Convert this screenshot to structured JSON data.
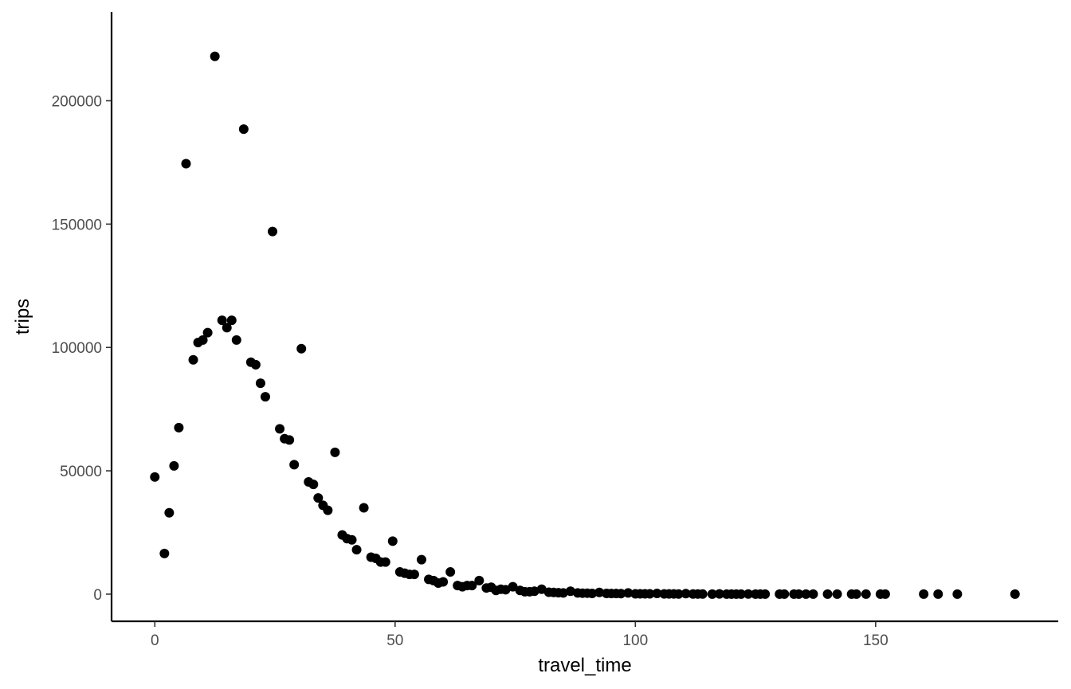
{
  "chart_data": {
    "type": "scatter",
    "xlabel": "travel_time",
    "ylabel": "trips",
    "xlim": [
      -9,
      188
    ],
    "ylim": [
      -11000,
      236000
    ],
    "x_ticks": [
      0,
      50,
      100,
      150
    ],
    "x_tick_labels": [
      "0",
      "50",
      "100",
      "150"
    ],
    "y_ticks": [
      0,
      50000,
      100000,
      150000,
      200000
    ],
    "y_tick_labels": [
      "0",
      "50000",
      "100000",
      "150000",
      "200000"
    ],
    "grid": false,
    "point_color": "#000000",
    "points": [
      {
        "x": 0,
        "y": 47500
      },
      {
        "x": 2,
        "y": 16500
      },
      {
        "x": 3,
        "y": 33000
      },
      {
        "x": 4,
        "y": 52000
      },
      {
        "x": 5,
        "y": 67500
      },
      {
        "x": 6.5,
        "y": 174500
      },
      {
        "x": 8,
        "y": 95000
      },
      {
        "x": 9,
        "y": 102000
      },
      {
        "x": 10,
        "y": 103000
      },
      {
        "x": 11,
        "y": 106000
      },
      {
        "x": 12.5,
        "y": 218000
      },
      {
        "x": 14,
        "y": 111000
      },
      {
        "x": 15,
        "y": 108000
      },
      {
        "x": 16,
        "y": 111000
      },
      {
        "x": 17,
        "y": 103000
      },
      {
        "x": 18.5,
        "y": 188500
      },
      {
        "x": 20,
        "y": 94000
      },
      {
        "x": 21,
        "y": 93000
      },
      {
        "x": 22,
        "y": 85500
      },
      {
        "x": 23,
        "y": 80000
      },
      {
        "x": 24.5,
        "y": 147000
      },
      {
        "x": 26,
        "y": 67000
      },
      {
        "x": 27,
        "y": 63000
      },
      {
        "x": 28,
        "y": 62500
      },
      {
        "x": 29,
        "y": 52500
      },
      {
        "x": 30.5,
        "y": 99500
      },
      {
        "x": 32,
        "y": 45500
      },
      {
        "x": 33,
        "y": 44500
      },
      {
        "x": 34,
        "y": 39000
      },
      {
        "x": 35,
        "y": 36000
      },
      {
        "x": 36,
        "y": 34000
      },
      {
        "x": 37.5,
        "y": 57500
      },
      {
        "x": 39,
        "y": 24000
      },
      {
        "x": 40,
        "y": 22500
      },
      {
        "x": 41,
        "y": 22000
      },
      {
        "x": 42,
        "y": 18000
      },
      {
        "x": 43.5,
        "y": 35000
      },
      {
        "x": 45,
        "y": 15000
      },
      {
        "x": 46,
        "y": 14500
      },
      {
        "x": 47,
        "y": 13000
      },
      {
        "x": 48,
        "y": 13000
      },
      {
        "x": 49.5,
        "y": 21500
      },
      {
        "x": 51,
        "y": 9000
      },
      {
        "x": 52,
        "y": 8500
      },
      {
        "x": 53,
        "y": 8000
      },
      {
        "x": 54,
        "y": 8000
      },
      {
        "x": 55.5,
        "y": 14000
      },
      {
        "x": 57,
        "y": 6000
      },
      {
        "x": 58,
        "y": 5500
      },
      {
        "x": 59,
        "y": 4500
      },
      {
        "x": 60,
        "y": 5000
      },
      {
        "x": 61.5,
        "y": 9000
      },
      {
        "x": 63,
        "y": 3500
      },
      {
        "x": 64,
        "y": 3000
      },
      {
        "x": 65,
        "y": 3500
      },
      {
        "x": 66,
        "y": 3500
      },
      {
        "x": 67.5,
        "y": 5500
      },
      {
        "x": 69,
        "y": 2500
      },
      {
        "x": 70,
        "y": 2800
      },
      {
        "x": 71,
        "y": 1500
      },
      {
        "x": 72,
        "y": 2000
      },
      {
        "x": 73,
        "y": 1800
      },
      {
        "x": 74.5,
        "y": 3000
      },
      {
        "x": 76,
        "y": 1500
      },
      {
        "x": 77,
        "y": 1000
      },
      {
        "x": 78,
        "y": 1000
      },
      {
        "x": 79,
        "y": 1200
      },
      {
        "x": 80.5,
        "y": 2000
      },
      {
        "x": 82,
        "y": 800
      },
      {
        "x": 83,
        "y": 700
      },
      {
        "x": 84,
        "y": 600
      },
      {
        "x": 85,
        "y": 500
      },
      {
        "x": 86.5,
        "y": 1200
      },
      {
        "x": 88,
        "y": 500
      },
      {
        "x": 89,
        "y": 400
      },
      {
        "x": 90,
        "y": 400
      },
      {
        "x": 91,
        "y": 300
      },
      {
        "x": 92.5,
        "y": 700
      },
      {
        "x": 94,
        "y": 300
      },
      {
        "x": 95,
        "y": 250
      },
      {
        "x": 96,
        "y": 250
      },
      {
        "x": 97,
        "y": 200
      },
      {
        "x": 98.5,
        "y": 500
      },
      {
        "x": 100,
        "y": 150
      },
      {
        "x": 101,
        "y": 150
      },
      {
        "x": 102,
        "y": 120
      },
      {
        "x": 103,
        "y": 120
      },
      {
        "x": 104.5,
        "y": 300
      },
      {
        "x": 106,
        "y": 100
      },
      {
        "x": 107,
        "y": 80
      },
      {
        "x": 108,
        "y": 80
      },
      {
        "x": 109,
        "y": 60
      },
      {
        "x": 110.5,
        "y": 200
      },
      {
        "x": 112,
        "y": 50
      },
      {
        "x": 113,
        "y": 50
      },
      {
        "x": 114,
        "y": 40
      },
      {
        "x": 116,
        "y": 30
      },
      {
        "x": 117.5,
        "y": 100
      },
      {
        "x": 119,
        "y": 30
      },
      {
        "x": 120,
        "y": 20
      },
      {
        "x": 121,
        "y": 20
      },
      {
        "x": 122,
        "y": 20
      },
      {
        "x": 123.5,
        "y": 60
      },
      {
        "x": 125,
        "y": 15
      },
      {
        "x": 126,
        "y": 10
      },
      {
        "x": 127,
        "y": 10
      },
      {
        "x": 130,
        "y": 10
      },
      {
        "x": 131,
        "y": 10
      },
      {
        "x": 133,
        "y": 10
      },
      {
        "x": 134,
        "y": 10
      },
      {
        "x": 135.5,
        "y": 20
      },
      {
        "x": 137,
        "y": 5
      },
      {
        "x": 140,
        "y": 5
      },
      {
        "x": 142,
        "y": 5
      },
      {
        "x": 145,
        "y": 5
      },
      {
        "x": 146,
        "y": 5
      },
      {
        "x": 148,
        "y": 5
      },
      {
        "x": 151,
        "y": 5
      },
      {
        "x": 152,
        "y": 5
      },
      {
        "x": 160,
        "y": 3
      },
      {
        "x": 163,
        "y": 3
      },
      {
        "x": 167,
        "y": 3
      },
      {
        "x": 179,
        "y": 2
      }
    ]
  }
}
